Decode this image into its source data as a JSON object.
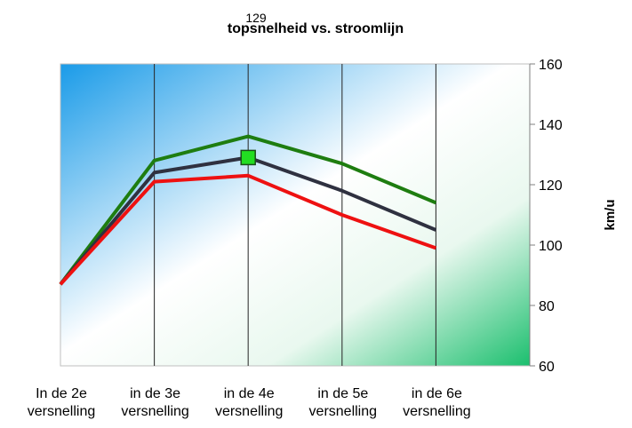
{
  "chart_data": {
    "type": "line",
    "title": "topsnelheid vs. stroomlijn",
    "ylabel": "km/u",
    "xlabel": "",
    "categories": [
      [
        "In de 2e",
        "versnelling"
      ],
      [
        "in de 3e",
        "versnelling"
      ],
      [
        "in de 4e",
        "versnelling"
      ],
      [
        "in de 5e",
        "versnelling"
      ],
      [
        "in de 6e",
        "versnelling"
      ]
    ],
    "ylim": [
      60,
      160
    ],
    "yticks": [
      60,
      80,
      100,
      120,
      140,
      160
    ],
    "y_axis_side": "right",
    "grid": "vertical",
    "legend": "none",
    "series": [
      {
        "color": "#1e7d10",
        "values": [
          87,
          128,
          136,
          127,
          114
        ]
      },
      {
        "color": "#2f3140",
        "values": [
          87,
          124,
          129,
          118,
          105
        ]
      },
      {
        "color": "#ee1111",
        "values": [
          87,
          121,
          123,
          110,
          99
        ]
      }
    ],
    "highlight": {
      "series_index": 1,
      "category_index": 2,
      "label": "129",
      "marker_color": "#22dd22"
    },
    "colors": {
      "plot_bg_top_left": "#1a9be8",
      "plot_bg_middle": "#ffffff",
      "plot_bg_bottom_right": "#1bbf6e"
    }
  }
}
